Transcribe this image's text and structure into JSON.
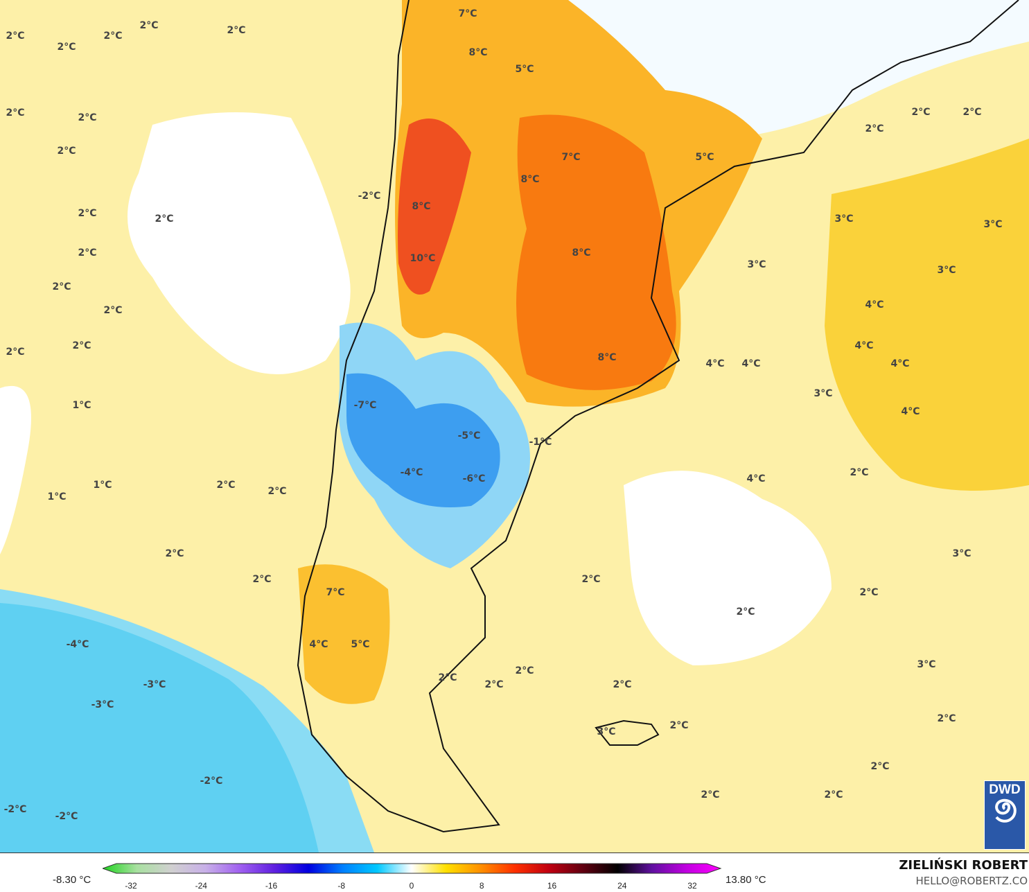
{
  "map": {
    "unit": "°C",
    "labels": [
      "2°C",
      "2°C",
      "2°C",
      "2°C",
      "2°C",
      "7°C",
      "8°C",
      "5°C",
      "2°C",
      "2°C",
      "2°C",
      "-2°C",
      "7°C",
      "8°C",
      "5°C",
      "2°C",
      "2°C",
      "2°C",
      "8°C",
      "2°C",
      "2°C",
      "3°C",
      "3°C",
      "10°C",
      "8°C",
      "2°C",
      "3°C",
      "3°C",
      "2°C",
      "2°C",
      "4°C",
      "2°C",
      "2°C",
      "4°C",
      "8°C",
      "4°C",
      "4°C",
      "4°C",
      "1°C",
      "-7°C",
      "3°C",
      "4°C",
      "-5°C",
      "-1°C",
      "-4°C",
      "-6°C",
      "2°C",
      "4°C",
      "1°C",
      "1°C",
      "2°C",
      "2°C",
      "2°C",
      "3°C",
      "2°C",
      "2°C",
      "2°C",
      "2°C",
      "7°C",
      "-4°C",
      "4°C",
      "5°C",
      "3°C",
      "-3°C",
      "-3°C",
      "2°C",
      "2°C",
      "2°C",
      "2°C",
      "3°C",
      "2°C",
      "2°C",
      "2°C",
      "-2°C",
      "2°C",
      "2°C",
      "-2°C",
      "-2°C"
    ]
  },
  "logo": {
    "text": "DWD"
  },
  "legend": {
    "min_value": "-8.30 °C",
    "max_value": "13.80 °C",
    "ticks": [
      "-32",
      "-24",
      "-16",
      "-8",
      "0",
      "8",
      "16",
      "24",
      "32"
    ],
    "colors": [
      "#1fd41f",
      "#a8e0a0",
      "#d0d0d0",
      "#c8b0e8",
      "#a060f0",
      "#6020e0",
      "#0000e0",
      "#0080ff",
      "#00c8ff",
      "#ffffff",
      "#ffe000",
      "#ff9000",
      "#ff3000",
      "#c00010",
      "#600010",
      "#000000",
      "#6010a0",
      "#c000e0",
      "#ff00ff"
    ]
  },
  "credits": {
    "author": "ZIELIŃSKI ROBERT",
    "email": "HELLO@ROBERTZ.CO"
  }
}
